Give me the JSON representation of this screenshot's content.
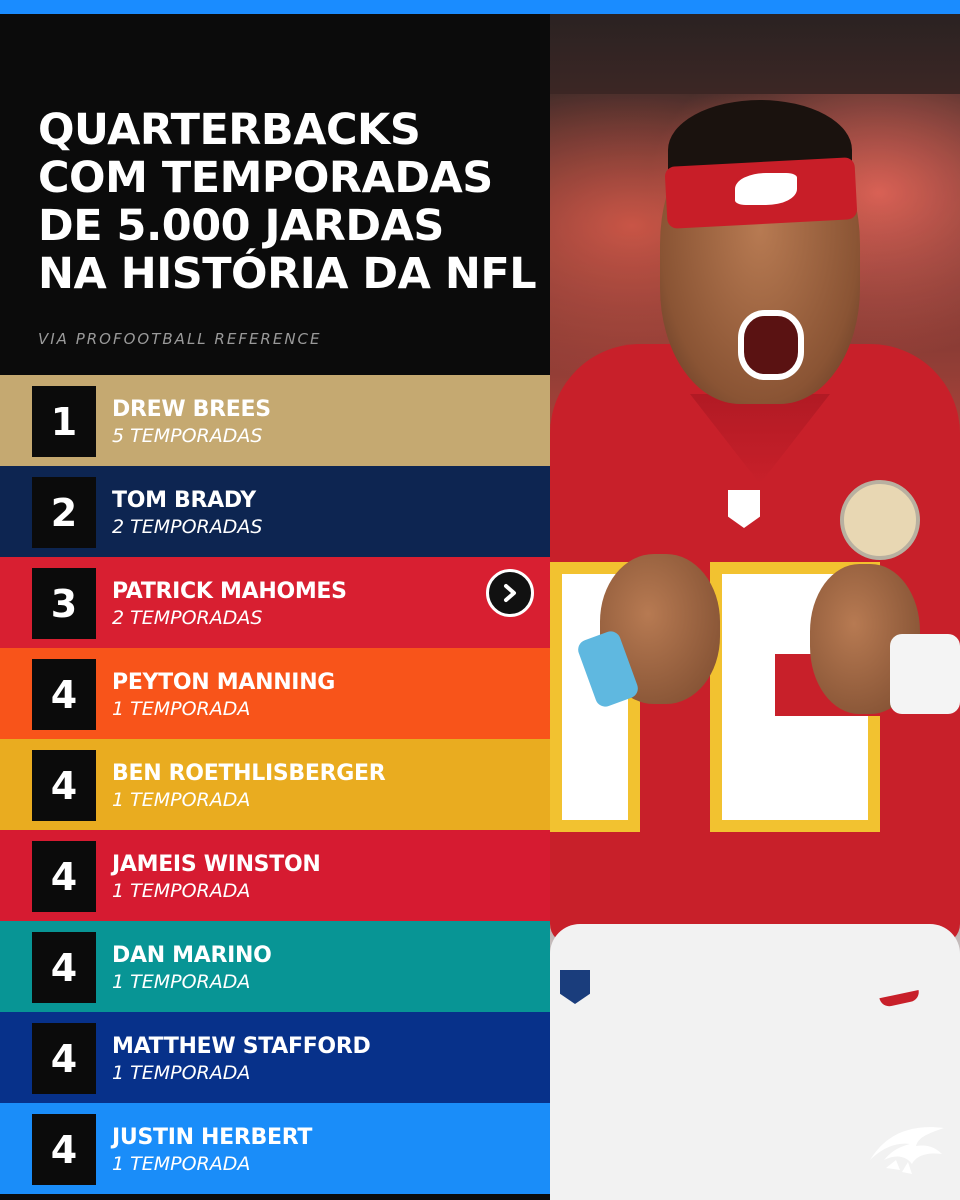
{
  "title_lines": [
    "QUARTERBACKS",
    "COM TEMPORADAS",
    "DE 5.000 JARDAS",
    "NA HISTÓRIA DA NFL"
  ],
  "source": "VIA PROFOOTBALL REFERENCE",
  "rows": [
    {
      "rank": "1",
      "name": "DREW BREES",
      "seasons": "5 TEMPORADAS",
      "color": "#c5a971"
    },
    {
      "rank": "2",
      "name": "TOM BRADY",
      "seasons": "2 TEMPORADAS",
      "color": "#0d2551"
    },
    {
      "rank": "3",
      "name": "PATRICK MAHOMES",
      "seasons": "2 TEMPORADAS",
      "color": "#d81f31"
    },
    {
      "rank": "4",
      "name": "PEYTON MANNING",
      "seasons": "1 TEMPORADA",
      "color": "#f8541a"
    },
    {
      "rank": "4",
      "name": "BEN ROETHLISBERGER",
      "seasons": "1 TEMPORADA",
      "color": "#e9ac20"
    },
    {
      "rank": "4",
      "name": "JAMEIS WINSTON",
      "seasons": "1 TEMPORADA",
      "color": "#d61b31"
    },
    {
      "rank": "4",
      "name": "DAN MARINO",
      "seasons": "1 TEMPORADA",
      "color": "#089595"
    },
    {
      "rank": "4",
      "name": "MATTHEW STAFFORD",
      "seasons": "1 TEMPORADA",
      "color": "#07318a"
    },
    {
      "rank": "4",
      "name": "JUSTIN HERBERT",
      "seasons": "1 TEMPORADA",
      "color": "#1a8df9"
    }
  ],
  "icons": {
    "arrow": "chevron-right-icon",
    "logo": "eagle-logo-icon"
  },
  "colors": {
    "top_bar": "#1a8cff",
    "background": "#0b0b0b"
  }
}
